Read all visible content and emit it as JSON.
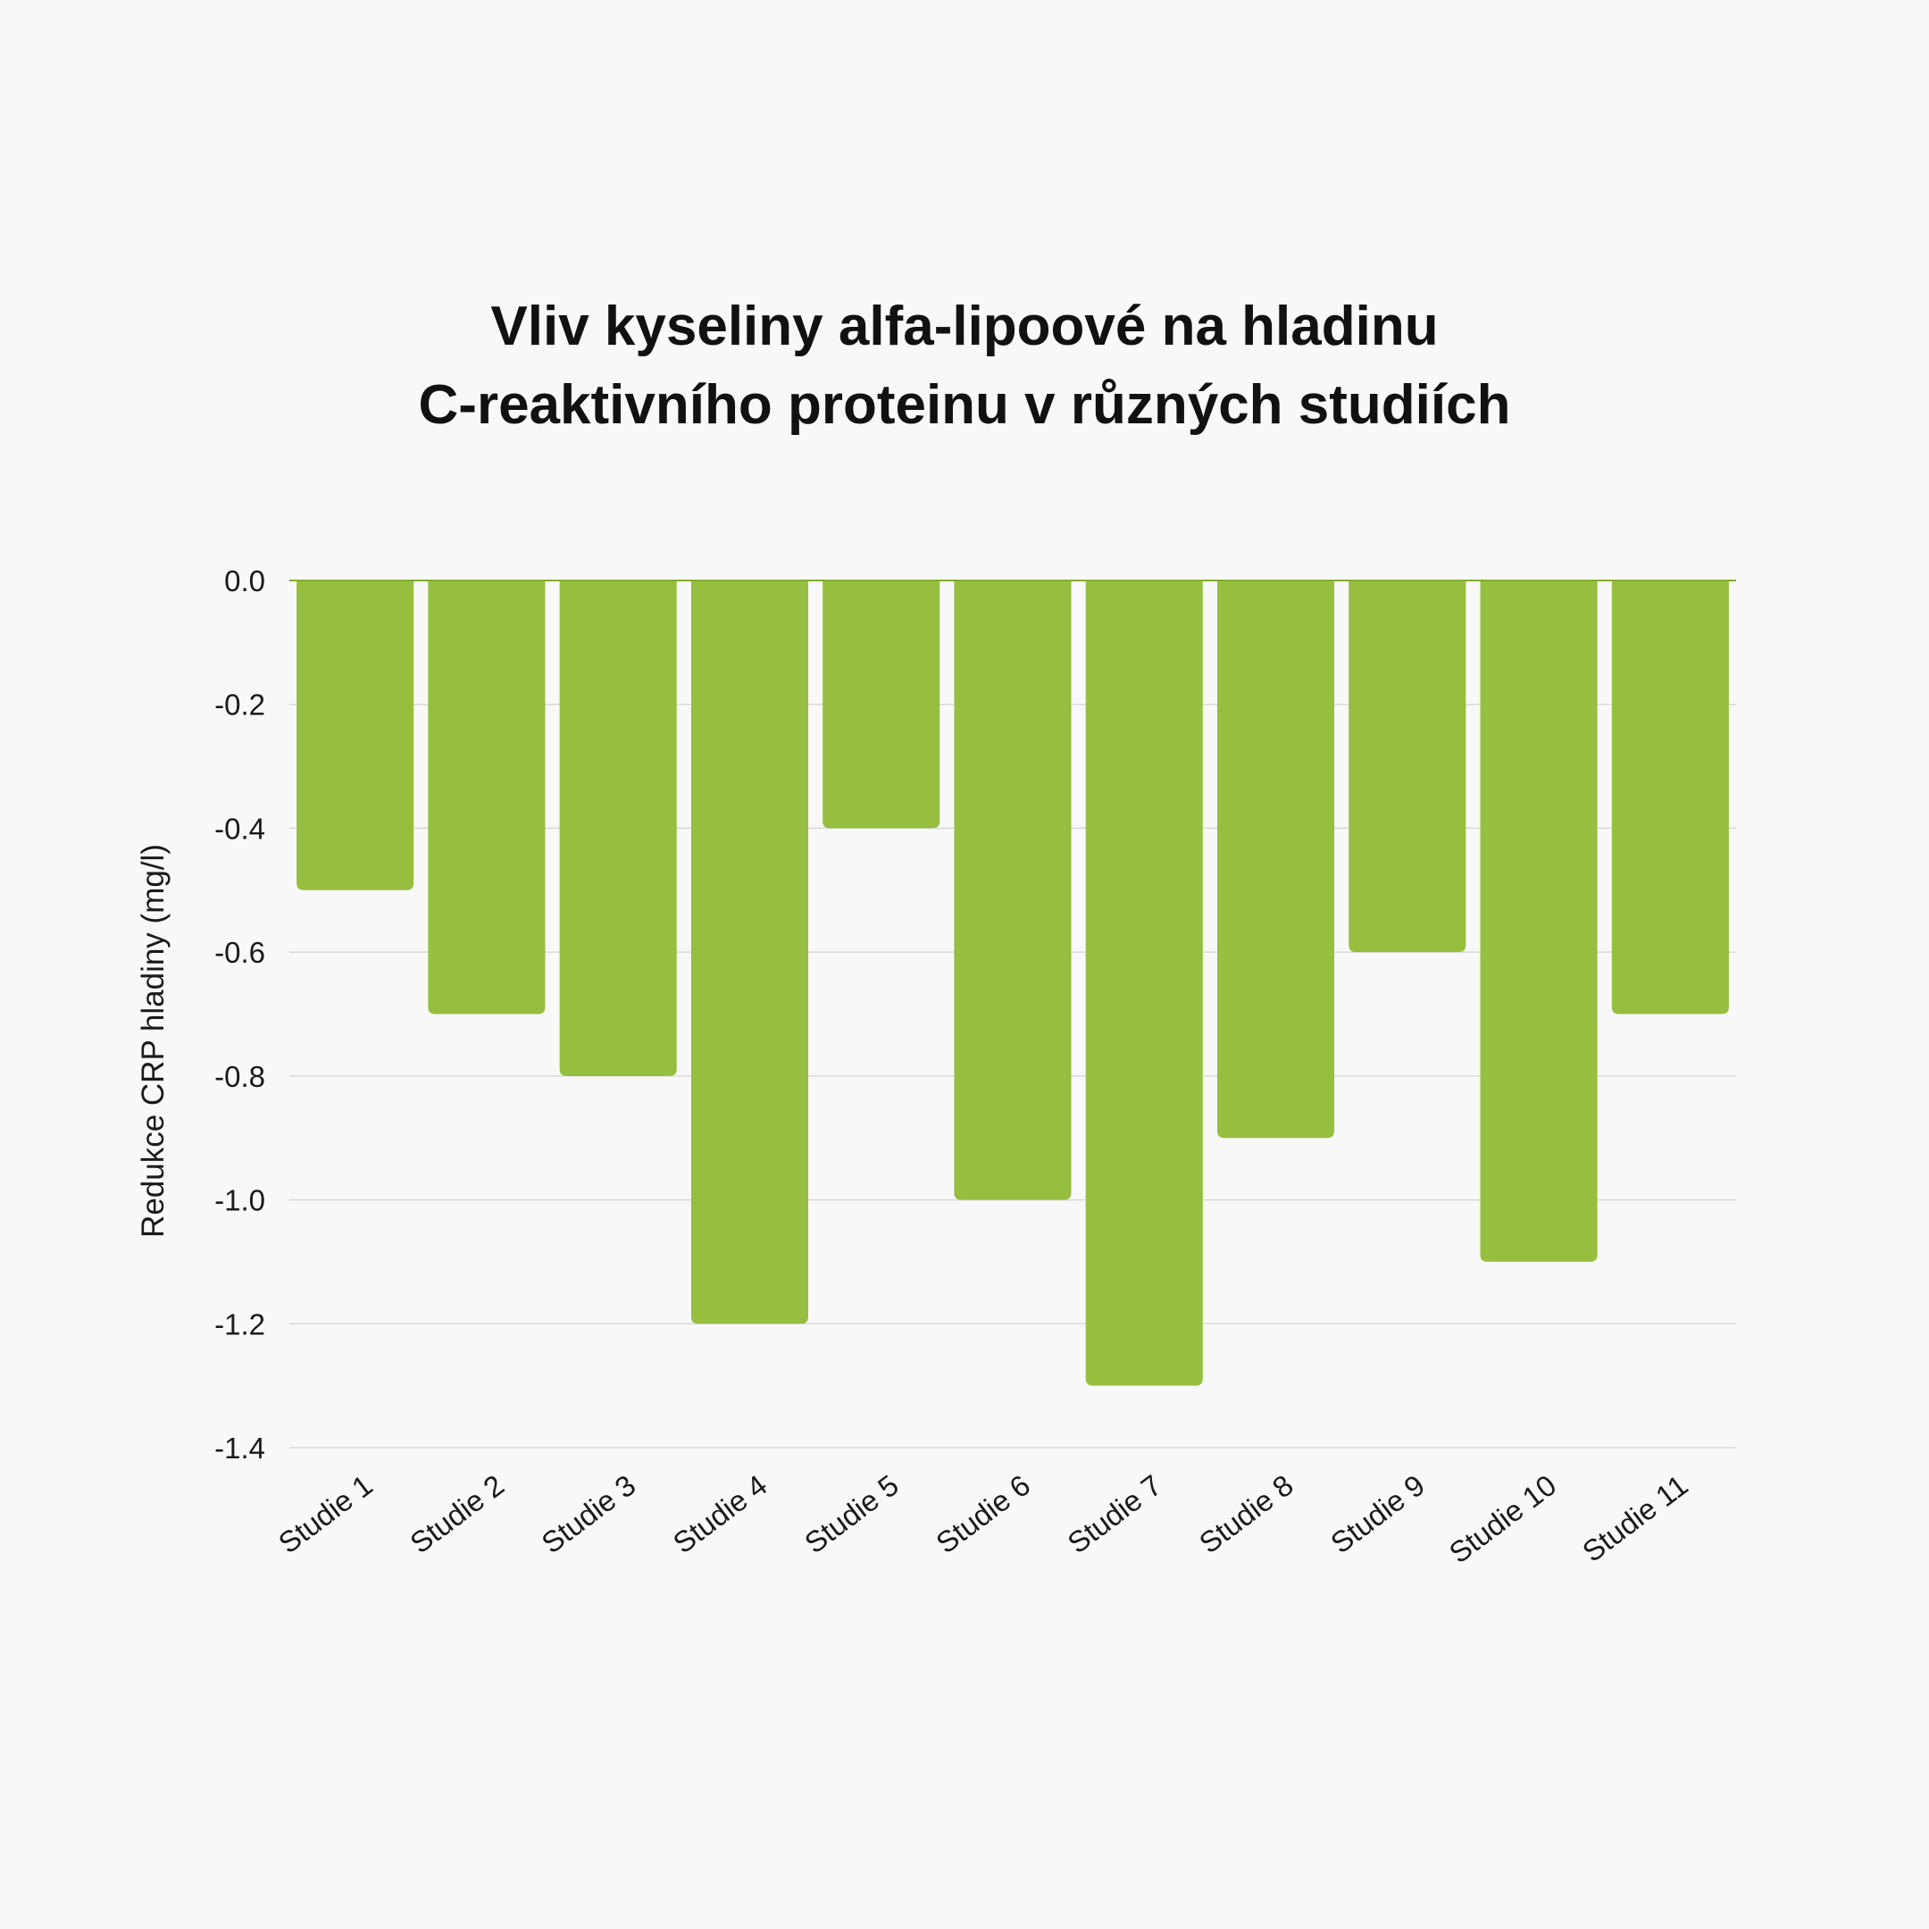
{
  "chart_data": {
    "type": "bar",
    "title_lines": [
      "Vliv kyseliny alfa-lipoové na hladinu",
      "C-reaktivního proteinu v různých studiích"
    ],
    "xlabel": "",
    "ylabel": "Redukce CRP hladiny (mg/l)",
    "categories": [
      "Studie 1",
      "Studie 2",
      "Studie 3",
      "Studie 4",
      "Studie 5",
      "Studie 6",
      "Studie 7",
      "Studie 8",
      "Studie 9",
      "Studie 10",
      "Studie 11"
    ],
    "values": [
      -0.5,
      -0.7,
      -0.8,
      -1.2,
      -0.4,
      -1.0,
      -1.3,
      -0.9,
      -0.6,
      -1.1,
      -0.7
    ],
    "ylim": [
      -1.4,
      0.0
    ],
    "yticks": [
      "0.0",
      "-0.2",
      "-0.4",
      "-0.6",
      "-0.8",
      "-1.0",
      "-1.2",
      "-1.4"
    ],
    "grid": true,
    "legend": "none",
    "colors": {
      "bar": "#96be3f",
      "grid": "#d9d9d9",
      "zero_line": "#7fae2e",
      "background": "#f8f8f8"
    }
  }
}
